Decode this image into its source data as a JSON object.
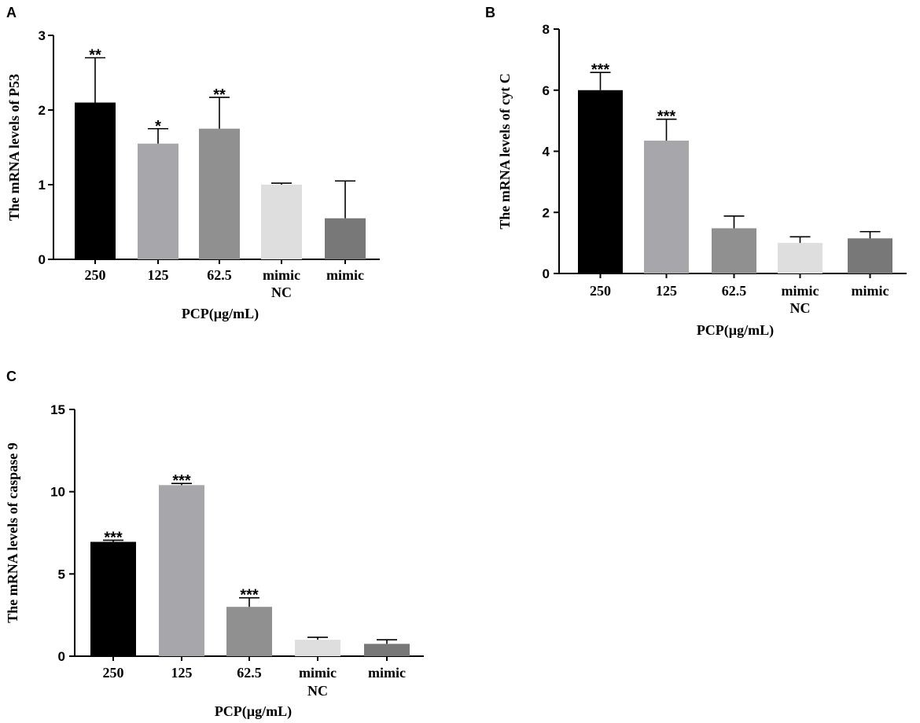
{
  "chart_data": [
    {
      "type": "bar",
      "panel": "A",
      "title": "",
      "ylabel": "The mRNA levels of P53",
      "xlabel": "PCP(µg/mL)",
      "ylim": [
        0,
        3
      ],
      "yticks": [
        "0",
        "1",
        "2",
        "3"
      ],
      "categories": [
        "250",
        "125",
        "62.5",
        "mimic\nNC",
        "mimic"
      ],
      "values": [
        2.1,
        1.55,
        1.75,
        1.0,
        0.55
      ],
      "errors": [
        0.6,
        0.2,
        0.42,
        0.02,
        0.5
      ],
      "significance": [
        "**",
        "*",
        "**",
        "",
        ""
      ],
      "colors": [
        "#000000",
        "#a6a6ab",
        "#909090",
        "#dedede",
        "#787878"
      ]
    },
    {
      "type": "bar",
      "panel": "B",
      "title": "",
      "ylabel": "The mRNA levels of cyt C",
      "xlabel": "PCP(µg/mL)",
      "ylim": [
        0,
        8
      ],
      "yticks": [
        "0",
        "2",
        "4",
        "6",
        "8"
      ],
      "categories": [
        "250",
        "125",
        "62.5",
        "mimic\nNC",
        "mimic"
      ],
      "values": [
        6.0,
        4.35,
        1.48,
        1.0,
        1.15
      ],
      "errors": [
        0.58,
        0.7,
        0.4,
        0.2,
        0.22
      ],
      "significance": [
        "***",
        "***",
        "",
        "",
        ""
      ],
      "colors": [
        "#000000",
        "#a6a6ab",
        "#909090",
        "#dedede",
        "#787878"
      ]
    },
    {
      "type": "bar",
      "panel": "C",
      "title": "",
      "ylabel": "The mRNA levels of caspase 9",
      "xlabel": "PCP(µg/mL)",
      "ylim": [
        0,
        15
      ],
      "yticks": [
        "0",
        "5",
        "10",
        "15"
      ],
      "categories": [
        "250",
        "125",
        "62.5",
        "mimic\nNC",
        "mimic"
      ],
      "values": [
        6.95,
        10.4,
        3.0,
        1.0,
        0.75
      ],
      "errors": [
        0.1,
        0.1,
        0.55,
        0.15,
        0.25
      ],
      "significance": [
        "***",
        "***",
        "***",
        "",
        ""
      ],
      "colors": [
        "#000000",
        "#a6a6ab",
        "#909090",
        "#dedede",
        "#787878"
      ]
    }
  ]
}
